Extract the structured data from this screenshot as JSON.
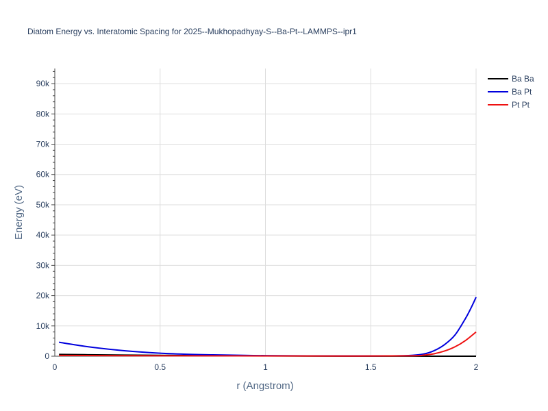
{
  "chart_data": {
    "type": "line",
    "title": "Diatom Energy vs. Interatomic Spacing for 2025--Mukhopadhyay-S--Ba-Pt--LAMMPS--ipr1",
    "xlabel": "r (Angstrom)",
    "ylabel": "Energy (eV)",
    "xlim": [
      0,
      2
    ],
    "ylim": [
      0,
      95000
    ],
    "xticks": [
      0,
      0.5,
      1,
      1.5,
      2
    ],
    "xtick_labels": [
      "0",
      "0.5",
      "1",
      "1.5",
      "2"
    ],
    "yticks": [
      0,
      10000,
      20000,
      30000,
      40000,
      50000,
      60000,
      70000,
      80000,
      90000
    ],
    "ytick_labels": [
      "0",
      "10k",
      "20k",
      "30k",
      "40k",
      "50k",
      "60k",
      "70k",
      "80k",
      "90k"
    ],
    "grid": true,
    "legend_position": "top-right",
    "series": [
      {
        "name": "Ba Ba",
        "color": "#000000",
        "x": [
          0.02,
          0.2,
          0.4,
          0.6,
          0.8,
          1.0,
          1.2,
          1.4,
          1.6,
          1.8,
          2.0
        ],
        "y": [
          600,
          450,
          330,
          240,
          170,
          110,
          70,
          40,
          20,
          10,
          5
        ]
      },
      {
        "name": "Ba Pt",
        "color": "#0000dd",
        "x": [
          0.02,
          0.15,
          0.3,
          0.45,
          0.6,
          0.75,
          0.9,
          1.0,
          1.2,
          1.4,
          1.6,
          1.7,
          1.75,
          1.8,
          1.85,
          1.9,
          1.95,
          1.98,
          2.0
        ],
        "y": [
          4600,
          3200,
          2000,
          1200,
          700,
          450,
          280,
          200,
          120,
          80,
          100,
          300,
          700,
          1800,
          3800,
          7000,
          12500,
          16500,
          19500
        ]
      },
      {
        "name": "Pt Pt",
        "color": "#ee1111",
        "x": [
          0.02,
          0.3,
          0.6,
          1.0,
          1.4,
          1.7,
          1.75,
          1.8,
          1.85,
          1.9,
          1.95,
          2.0
        ],
        "y": [
          250,
          180,
          130,
          90,
          60,
          150,
          350,
          800,
          1700,
          3100,
          5200,
          8000
        ]
      }
    ]
  }
}
